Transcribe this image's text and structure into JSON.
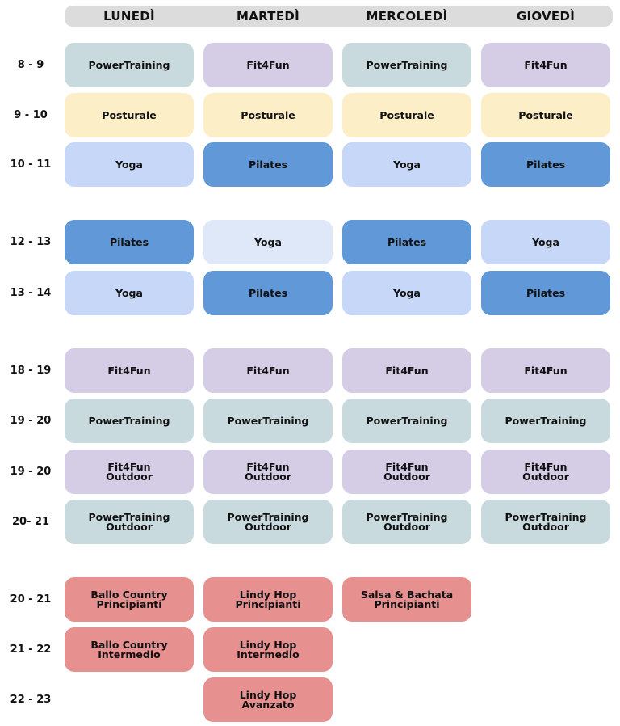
{
  "days": [
    "LUNEDÌ",
    "MARTEDÌ",
    "MERCOLEDÌ",
    "GIOVEDÌ"
  ],
  "colors": {
    "header": "#dcdcdc",
    "power": "#c9dade",
    "fit": "#d5cce6",
    "posturale": "#fcefc7",
    "yoga": "#c6d7f7",
    "yoga_light": "#dfe8f9",
    "pilates": "#6199d8",
    "dance": "#e79090"
  },
  "rows": [
    {
      "time": "8 - 9",
      "cells": [
        {
          "label": "PowerTraining",
          "type": "power"
        },
        {
          "label": "Fit4Fun",
          "type": "fit"
        },
        {
          "label": "PowerTraining",
          "type": "power"
        },
        {
          "label": "Fit4Fun",
          "type": "fit"
        }
      ]
    },
    {
      "time": "9 - 10",
      "cells": [
        {
          "label": "Posturale",
          "type": "posturale"
        },
        {
          "label": "Posturale",
          "type": "posturale"
        },
        {
          "label": "Posturale",
          "type": "posturale"
        },
        {
          "label": "Posturale",
          "type": "posturale"
        }
      ]
    },
    {
      "time": "10 - 11",
      "cells": [
        {
          "label": "Yoga",
          "type": "yoga"
        },
        {
          "label": "Pilates",
          "type": "pilates"
        },
        {
          "label": "Yoga",
          "type": "yoga"
        },
        {
          "label": "Pilates",
          "type": "pilates"
        }
      ]
    },
    {
      "time": "12 - 13",
      "cells": [
        {
          "label": "Pilates",
          "type": "pilates"
        },
        {
          "label": "Yoga",
          "type": "yoga_light"
        },
        {
          "label": "Pilates",
          "type": "pilates"
        },
        {
          "label": "Yoga",
          "type": "yoga"
        }
      ]
    },
    {
      "time": "13 - 14",
      "cells": [
        {
          "label": "Yoga",
          "type": "yoga"
        },
        {
          "label": "Pilates",
          "type": "pilates"
        },
        {
          "label": "Yoga",
          "type": "yoga"
        },
        {
          "label": "Pilates",
          "type": "pilates"
        }
      ]
    },
    {
      "time": "18 - 19",
      "cells": [
        {
          "label": "Fit4Fun",
          "type": "fit"
        },
        {
          "label": "Fit4Fun",
          "type": "fit"
        },
        {
          "label": "Fit4Fun",
          "type": "fit"
        },
        {
          "label": "Fit4Fun",
          "type": "fit"
        }
      ]
    },
    {
      "time": "19 - 20",
      "cells": [
        {
          "label": "PowerTraining",
          "type": "power"
        },
        {
          "label": "PowerTraining",
          "type": "power"
        },
        {
          "label": "PowerTraining",
          "type": "power"
        },
        {
          "label": "PowerTraining",
          "type": "power"
        }
      ]
    },
    {
      "time": "19 - 20",
      "cells": [
        {
          "label": "Fit4Fun\nOutdoor",
          "type": "fit"
        },
        {
          "label": "Fit4Fun\nOutdoor",
          "type": "fit"
        },
        {
          "label": "Fit4Fun\nOutdoor",
          "type": "fit"
        },
        {
          "label": "Fit4Fun\nOutdoor",
          "type": "fit"
        }
      ]
    },
    {
      "time": "20- 21",
      "cells": [
        {
          "label": "PowerTraining\nOutdoor",
          "type": "power"
        },
        {
          "label": "PowerTraining\nOutdoor",
          "type": "power"
        },
        {
          "label": "PowerTraining\nOutdoor",
          "type": "power"
        },
        {
          "label": "PowerTraining\nOutdoor",
          "type": "power"
        }
      ]
    },
    {
      "time": "20 - 21",
      "cells": [
        {
          "label": "Ballo Country\nPrincipianti",
          "type": "dance"
        },
        {
          "label": "Lindy Hop\nPrincipianti",
          "type": "dance"
        },
        {
          "label": "Salsa & Bachata\nPrincipianti",
          "type": "dance"
        },
        null
      ]
    },
    {
      "time": "21 - 22",
      "cells": [
        {
          "label": "Ballo Country\nIntermedio",
          "type": "dance"
        },
        {
          "label": "Lindy Hop\nIntermedio",
          "type": "dance"
        },
        null,
        null
      ]
    },
    {
      "time": "22 - 23",
      "cells": [
        null,
        {
          "label": "Lindy Hop\nAvanzato",
          "type": "dance"
        },
        null,
        null
      ]
    }
  ]
}
